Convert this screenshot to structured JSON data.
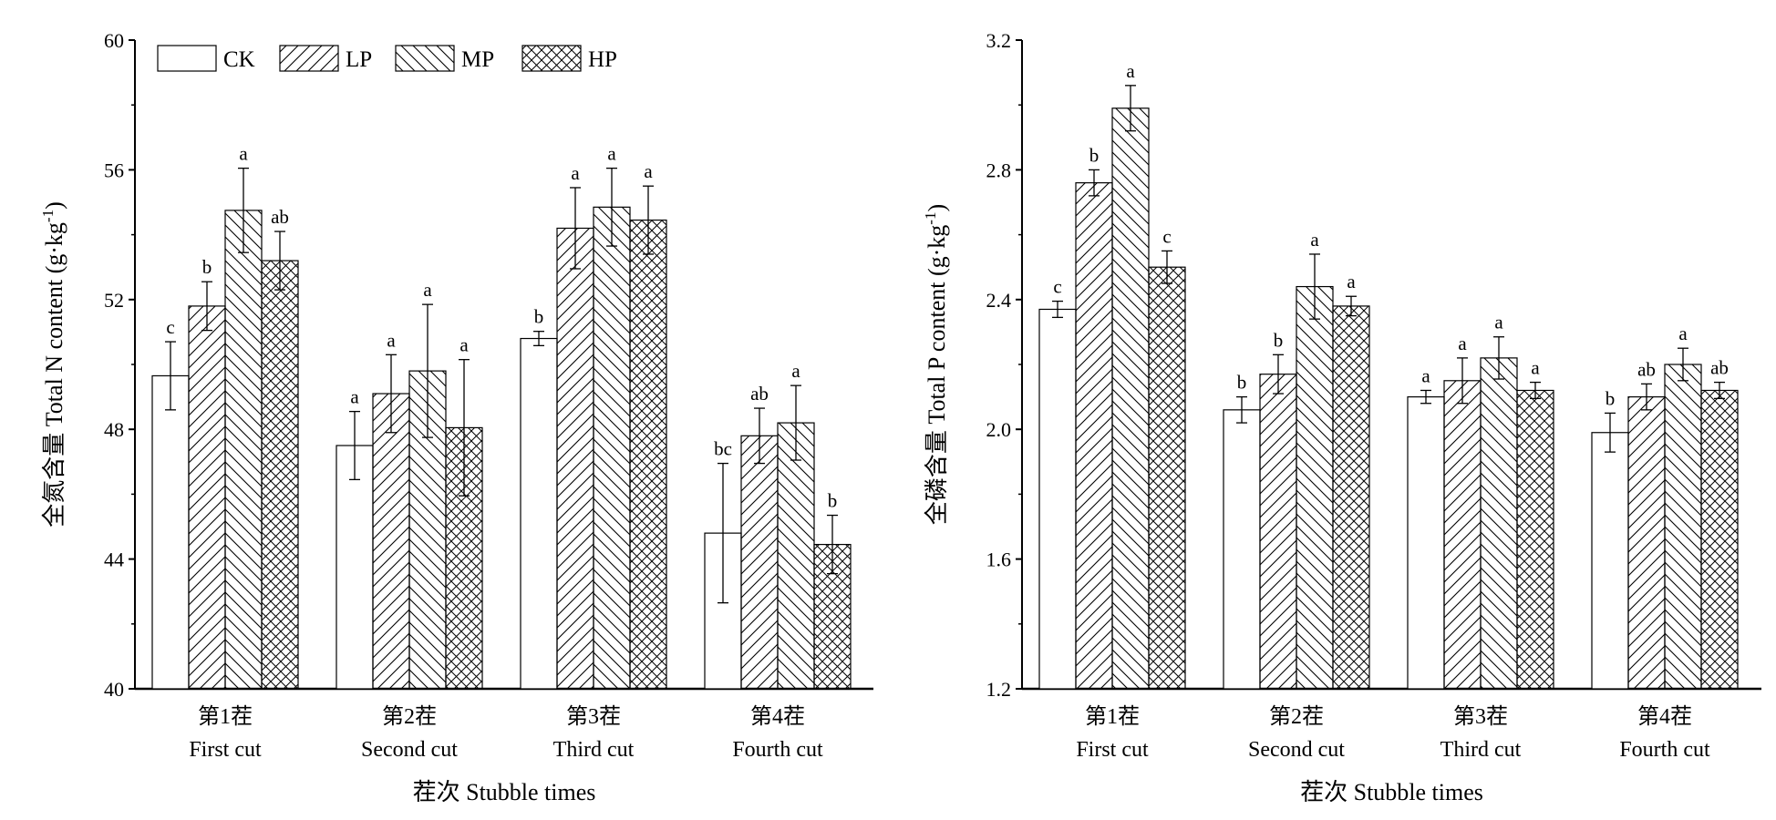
{
  "chart_data": [
    {
      "type": "bar",
      "title": "",
      "xlabel": "茬次 Stubble times",
      "ylabel": "全氮含量 Total N content (g·kg",
      "ylabel_sup": "-1",
      "ylabel_close": ")",
      "ylim": [
        40,
        60
      ],
      "yticks": [
        "40",
        "44",
        "48",
        "52",
        "56",
        "60"
      ],
      "categories": [
        {
          "cn": "第1茬",
          "en": "First cut"
        },
        {
          "cn": "第2茬",
          "en": "Second cut"
        },
        {
          "cn": "第3茬",
          "en": "Third cut"
        },
        {
          "cn": "第4茬",
          "en": "Fourth cut"
        }
      ],
      "legend_position": "top-left",
      "series": [
        {
          "name": "CK",
          "pattern": "none",
          "values": [
            49.65,
            47.5,
            50.8,
            44.8
          ],
          "errors": [
            1.05,
            1.05,
            0.22,
            2.15
          ],
          "letters": [
            "c",
            "a",
            "b",
            "bc"
          ]
        },
        {
          "name": "LP",
          "pattern": "forward-diagonal",
          "values": [
            51.8,
            49.1,
            54.2,
            47.8
          ],
          "errors": [
            0.75,
            1.2,
            1.25,
            0.85
          ],
          "letters": [
            "b",
            "a",
            "a",
            "ab"
          ]
        },
        {
          "name": "MP",
          "pattern": "back-diagonal",
          "values": [
            54.75,
            49.8,
            54.85,
            48.2
          ],
          "errors": [
            1.3,
            2.05,
            1.2,
            1.15
          ],
          "letters": [
            "a",
            "a",
            "a",
            "a"
          ]
        },
        {
          "name": "HP",
          "pattern": "crosshatch",
          "values": [
            53.2,
            48.05,
            54.45,
            44.45
          ],
          "errors": [
            0.9,
            2.1,
            1.05,
            0.9
          ],
          "letters": [
            "ab",
            "a",
            "a",
            "b"
          ]
        }
      ]
    },
    {
      "type": "bar",
      "title": "",
      "xlabel": "茬次 Stubble times",
      "ylabel": "全磷含量 Total P content (g·kg",
      "ylabel_sup": "-1",
      "ylabel_close": ")",
      "ylim": [
        1.2,
        3.2
      ],
      "yticks": [
        "1.2",
        "1.6",
        "2.0",
        "2.4",
        "2.8",
        "3.2"
      ],
      "categories": [
        {
          "cn": "第1茬",
          "en": "First cut"
        },
        {
          "cn": "第2茬",
          "en": "Second cut"
        },
        {
          "cn": "第3茬",
          "en": "Third cut"
        },
        {
          "cn": "第4茬",
          "en": "Fourth cut"
        }
      ],
      "series": [
        {
          "name": "CK",
          "pattern": "none",
          "values": [
            2.37,
            2.06,
            2.1,
            1.99
          ],
          "errors": [
            0.025,
            0.04,
            0.02,
            0.06
          ],
          "letters": [
            "c",
            "b",
            "a",
            "b"
          ]
        },
        {
          "name": "LP",
          "pattern": "forward-diagonal",
          "values": [
            2.76,
            2.17,
            2.15,
            2.1
          ],
          "errors": [
            0.04,
            0.06,
            0.07,
            0.04
          ],
          "letters": [
            "b",
            "b",
            "a",
            "ab"
          ]
        },
        {
          "name": "MP",
          "pattern": "back-diagonal",
          "values": [
            2.99,
            2.44,
            2.22,
            2.2
          ],
          "errors": [
            0.07,
            0.1,
            0.065,
            0.05
          ],
          "letters": [
            "a",
            "a",
            "a",
            "a"
          ]
        },
        {
          "name": "HP",
          "pattern": "crosshatch",
          "values": [
            2.5,
            2.38,
            2.12,
            2.12
          ],
          "errors": [
            0.05,
            0.03,
            0.025,
            0.025
          ],
          "letters": [
            "c",
            "a",
            "a",
            "ab"
          ]
        }
      ]
    }
  ]
}
